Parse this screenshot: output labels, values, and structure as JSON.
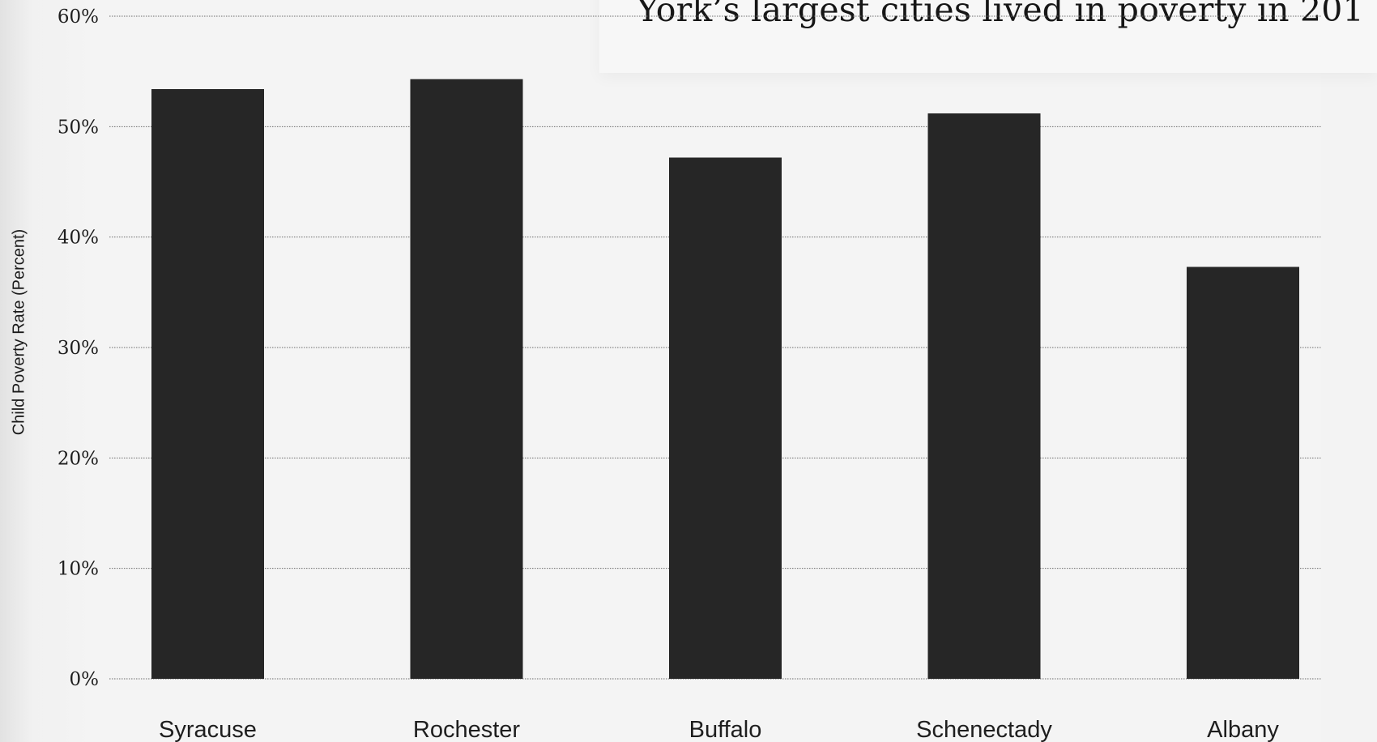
{
  "chart_data": {
    "type": "bar",
    "title": "York’s largest cities lived in poverty in 201",
    "ylabel": "Child Poverty Rate (Percent)",
    "xlabel": "",
    "categories": [
      "Syracuse",
      "Rochester",
      "Buffalo",
      "Schenectady",
      "Albany"
    ],
    "values": [
      53.4,
      54.3,
      47.2,
      51.2,
      37.3
    ],
    "ylim": [
      0,
      60
    ],
    "yticks": [
      {
        "value": 0,
        "label": "0%"
      },
      {
        "value": 10,
        "label": "10%"
      },
      {
        "value": 20,
        "label": "20%"
      },
      {
        "value": 30,
        "label": "30%"
      },
      {
        "value": 40,
        "label": "40%"
      },
      {
        "value": 50,
        "label": "50%"
      },
      {
        "value": 60,
        "label": "60%"
      }
    ],
    "grid": true,
    "bar_color": "#262626"
  }
}
